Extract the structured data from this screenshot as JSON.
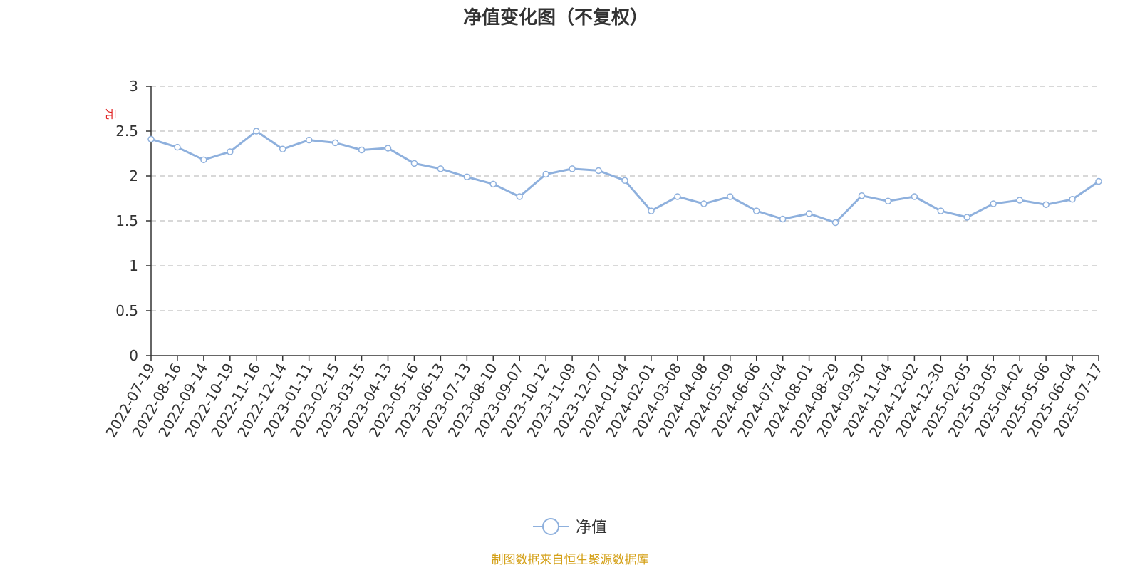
{
  "chart_data": {
    "type": "line",
    "title": "净值变化图（不复权）",
    "ylabel": "元",
    "ylim": [
      0,
      3
    ],
    "yticks": [
      "0",
      "0.5",
      "1",
      "1.5",
      "2",
      "2.5",
      "3"
    ],
    "grid": true,
    "legend_position": "bottom-center",
    "x_tick_labels": [
      "2022-07-19",
      "2022-08-16",
      "2022-09-14",
      "2022-10-19",
      "2022-11-16",
      "2022-12-14",
      "2023-01-11",
      "2023-02-15",
      "2023-03-15",
      "2023-04-13",
      "2023-05-16",
      "2023-06-13",
      "2023-07-13",
      "2023-08-10",
      "2023-09-07",
      "2023-10-12",
      "2023-11-09",
      "2023-12-07",
      "2024-01-04",
      "2024-02-01",
      "2024-03-08",
      "2024-04-08",
      "2024-05-09",
      "2024-06-06",
      "2024-07-04",
      "2024-08-01",
      "2024-08-29",
      "2024-09-30",
      "2024-11-04",
      "2024-12-02",
      "2024-12-30",
      "2025-02-05",
      "2025-03-05",
      "2025-04-02",
      "2025-05-06",
      "2025-06-04",
      "2025-07-17"
    ],
    "series": [
      {
        "name": "净值",
        "color": "#8eb0dd",
        "x": [
          "2022-07-19",
          "2022-08-16",
          "2022-09-14",
          "2022-10-19",
          "2022-11-16",
          "2022-12-14",
          "2023-01-11",
          "2023-02-15",
          "2023-03-15",
          "2023-04-13",
          "2023-05-16",
          "2023-06-13",
          "2023-07-13",
          "2023-08-10",
          "2023-09-07",
          "2023-10-12",
          "2023-11-09",
          "2023-12-07",
          "2024-01-04",
          "2024-02-01",
          "2024-03-08",
          "2024-04-08",
          "2024-05-09",
          "2024-06-06",
          "2024-07-04",
          "2024-08-01",
          "2024-08-29",
          "2024-09-30",
          "2024-11-04",
          "2024-12-02",
          "2024-12-30",
          "2025-02-05",
          "2025-03-05",
          "2025-04-02",
          "2025-05-06",
          "2025-06-04",
          "2025-07-17"
        ],
        "values": [
          2.41,
          2.32,
          2.18,
          2.27,
          2.5,
          2.3,
          2.4,
          2.37,
          2.29,
          2.31,
          2.14,
          2.08,
          1.99,
          1.91,
          1.77,
          2.02,
          2.08,
          2.06,
          1.95,
          1.61,
          1.77,
          1.69,
          1.77,
          1.61,
          1.52,
          1.58,
          1.48,
          1.78,
          1.72,
          1.77,
          1.61,
          1.54,
          1.69,
          1.73,
          1.68,
          1.74,
          1.94
        ]
      }
    ]
  },
  "legend": {
    "label": "净值"
  },
  "source_text": "制图数据来自恒生聚源数据库"
}
